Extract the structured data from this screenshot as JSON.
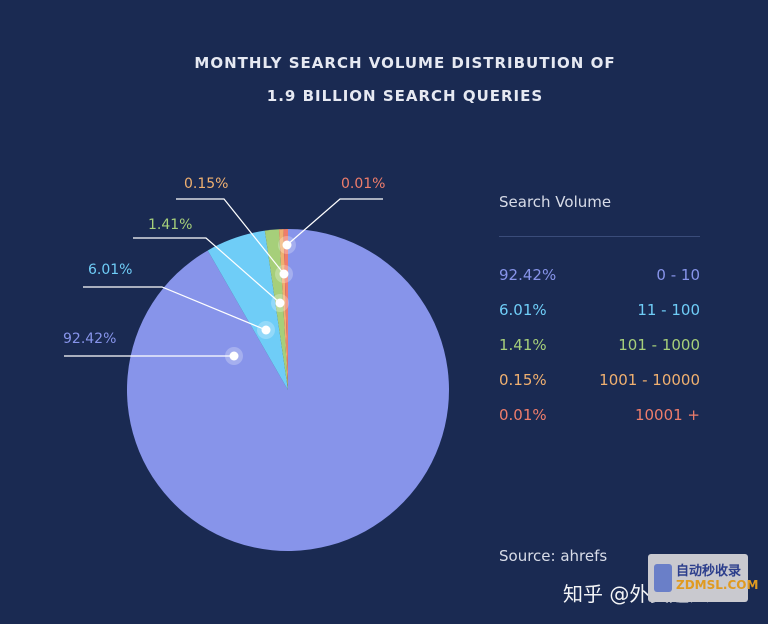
{
  "chart_data": {
    "type": "pie",
    "title_line1": "MONTHLY SEARCH VOLUME DISTRIBUTION OF",
    "title_line2": "1.9 BILLION SEARCH QUERIES",
    "legend_title": "Search Volume",
    "slices": [
      {
        "label": "92.42%",
        "value": 92.42,
        "range": "0 - 10",
        "color": "#8794ea"
      },
      {
        "label": "6.01%",
        "value": 6.01,
        "range": "11 - 100",
        "color": "#6fcdf7"
      },
      {
        "label": "1.41%",
        "value": 1.41,
        "range": "101 - 1000",
        "color": "#a6cf7a"
      },
      {
        "label": "0.15%",
        "value": 0.15,
        "range": "1001 - 10000",
        "color": "#f0b070"
      },
      {
        "label": "0.01%",
        "value": 0.01,
        "range": "10001 +",
        "color": "#ef7d6b"
      }
    ],
    "source": "Source: ahrefs"
  },
  "watermark": {
    "text": "知乎 @外贸超人",
    "logo_line1": "自动秒收录",
    "logo_line2": "ZDMSL.COM"
  }
}
